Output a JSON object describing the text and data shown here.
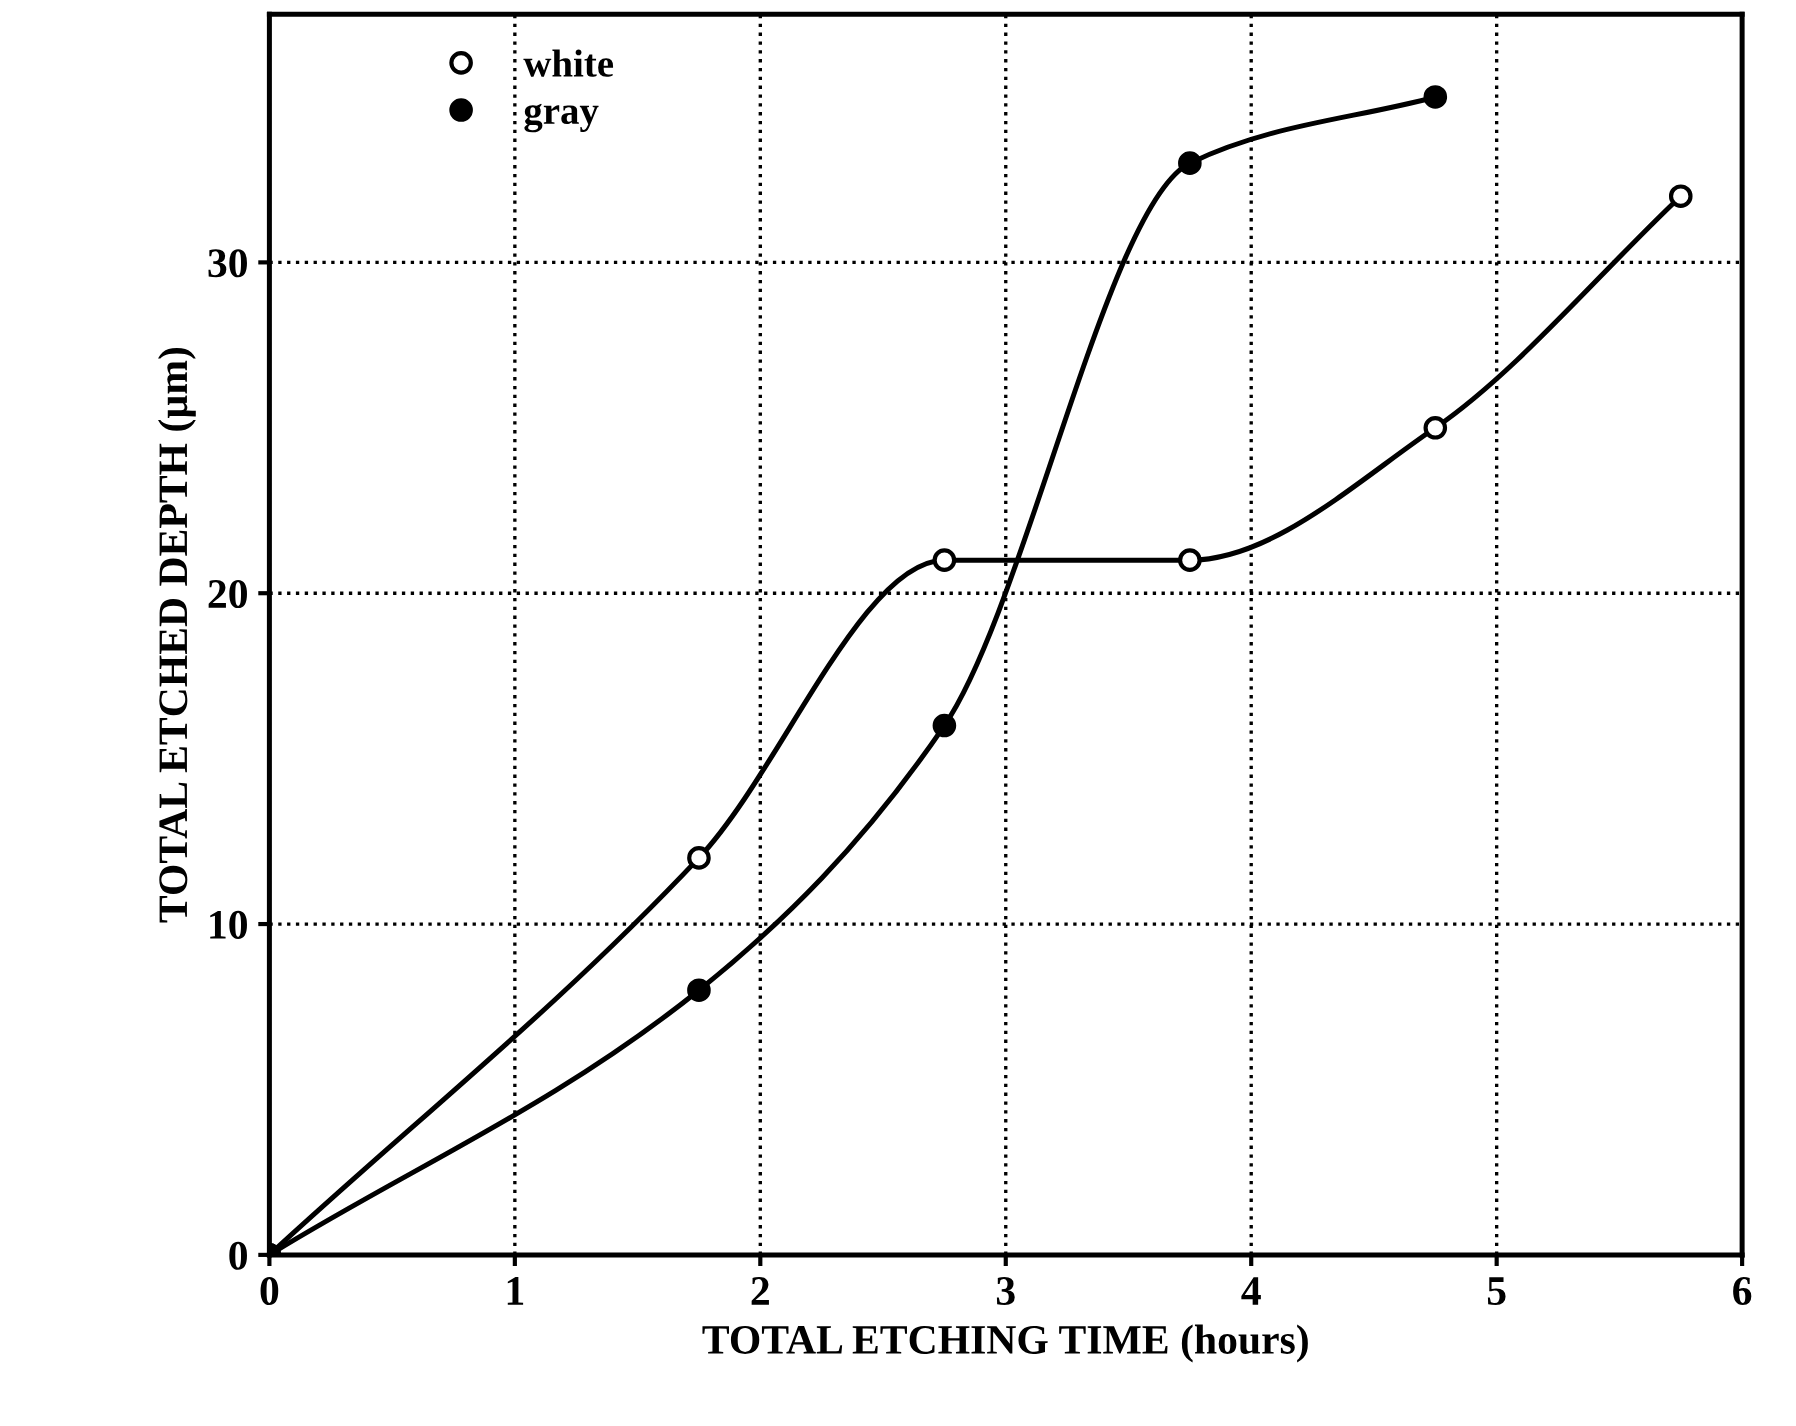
{
  "chart_data": {
    "type": "line",
    "xlabel": "TOTAL ETCHING TIME (hours)",
    "ylabel": "TOTAL ETCHED DEPTH (µm)",
    "xlim": [
      0,
      6
    ],
    "ylim": [
      0,
      37.5
    ],
    "xticks": [
      0,
      1,
      2,
      3,
      4,
      5,
      6
    ],
    "yticks": [
      0,
      10,
      20,
      30
    ],
    "grid": true,
    "legend": "top left",
    "marker": "circle",
    "series": [
      {
        "name": "white",
        "color": "#000000",
        "x": [
          0,
          1.75,
          2.75,
          3.75,
          4.75,
          5.75
        ],
        "values": [
          0,
          12,
          21,
          21,
          25,
          32
        ]
      },
      {
        "name": "gray",
        "color": "#000000",
        "x": [
          0,
          1.75,
          2.75,
          3.75,
          4.75
        ],
        "values": [
          0,
          8,
          16,
          33,
          35
        ]
      }
    ]
  }
}
